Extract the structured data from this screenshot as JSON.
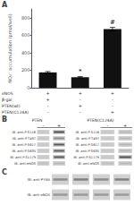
{
  "chart_data": [
    {
      "type": "bar",
      "title": "A",
      "categories": [
        null,
        null,
        null
      ],
      "values": [
        175,
        120,
        670
      ],
      "errors": [
        10,
        8,
        20
      ],
      "color": "#111111",
      "ylabel": "NO₂⁻ accumulation (pmol/well)",
      "ylim": [
        0,
        900
      ],
      "yticks": [
        0,
        200,
        400,
        600,
        800
      ],
      "grid": false,
      "annotations": [
        null,
        "*",
        "#"
      ],
      "table": {
        "row_labels": [
          "eNOS",
          "β-gal",
          "PTEN(wt)",
          "PTEN(C124A)"
        ],
        "rows": [
          [
            "+",
            "+",
            "+"
          ],
          [
            "+",
            "-",
            "-"
          ],
          [
            "-",
            "+",
            "-"
          ],
          [
            "-",
            "-",
            "+"
          ]
        ]
      }
    },
    {
      "type": "blot",
      "title": "B",
      "lane_color": "#d1d1d1",
      "panels": [
        {
          "title": "PTEN",
          "lanes": [
            "-",
            "+"
          ],
          "rows": [
            "IB: anti-P-S116",
            "IB: anti-P-T497",
            "IB: anti-P-S617",
            "IB: anti-P-S635",
            "IB: anti-P-S1179",
            "IB: anti-eNOS"
          ],
          "bands": [
            [
              0.78,
              0.3
            ],
            [
              0.78,
              0.55
            ],
            [
              0.78,
              0.35
            ],
            [
              0.78,
              0.38
            ],
            [
              0.78,
              0.35
            ],
            [
              0.75,
              0.72
            ]
          ]
        },
        {
          "title": "PTEN(C124A)",
          "lanes": [
            "-",
            "+"
          ],
          "rows": [
            "IB: anti-P-S116",
            "IB: anti-P-T497",
            "IB: anti-P-S617",
            "IB: anti-P-S635",
            "IB: anti-P-S1179",
            "IB: anti-eNOS"
          ],
          "bands": [
            [
              0.78,
              0.72
            ],
            [
              0.78,
              0.72
            ],
            [
              0.78,
              0.72
            ],
            [
              0.78,
              0.72
            ],
            [
              0.78,
              0.3
            ],
            [
              0.75,
              0.72
            ]
          ]
        }
      ]
    },
    {
      "type": "blot",
      "title": "C",
      "lane_color": "#d1d1d1",
      "rows": [
        "IB: anti-P-Y83",
        "IB: anti-eNOS"
      ],
      "bands": [
        [
          0.55,
          0.5,
          0.55,
          0.5
        ],
        [
          0.6,
          0.6,
          0.6,
          0.6
        ]
      ]
    }
  ]
}
